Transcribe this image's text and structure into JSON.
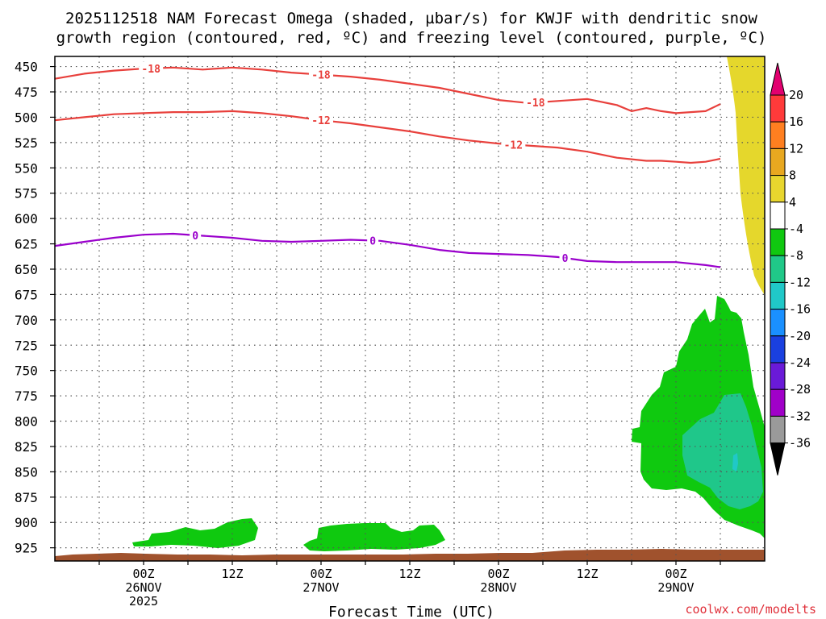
{
  "title_line1": "2025112518 NAM Forecast Omega (shaded, µbar/s) for KWJF with dendritic snow",
  "title_line2": "growth region (contoured, red, ºC) and freezing level (contoured, purple, ºC)",
  "credit": "coolwx.com/modelts",
  "colors": {
    "dgz": "#e8403c",
    "freezing": "#9a00cc",
    "ground": "#a0522d",
    "grid": "#555555"
  },
  "chart_data": {
    "type": "area",
    "xlabel": "Forecast Time (UTC)",
    "xlim": [
      -12,
      84
    ],
    "ylim": [
      440,
      938
    ],
    "y_ticks": [
      450,
      475,
      500,
      525,
      550,
      575,
      600,
      625,
      650,
      675,
      700,
      725,
      750,
      775,
      800,
      825,
      850,
      875,
      900,
      925
    ],
    "x_ticks": [
      {
        "t": 0,
        "lines": [
          "00Z",
          "26NOV",
          "2025"
        ]
      },
      {
        "t": 12,
        "lines": [
          "12Z"
        ]
      },
      {
        "t": 24,
        "lines": [
          "00Z",
          "27NOV"
        ]
      },
      {
        "t": 36,
        "lines": [
          "12Z"
        ]
      },
      {
        "t": 48,
        "lines": [
          "00Z",
          "28NOV"
        ]
      },
      {
        "t": 60,
        "lines": [
          "12Z"
        ]
      },
      {
        "t": 72,
        "lines": [
          "00Z",
          "29NOV"
        ]
      }
    ],
    "contours": [
      {
        "name": "-18",
        "kind": "dgz",
        "labels": [
          {
            "t": 1,
            "text": "-18"
          },
          {
            "t": 24,
            "text": "-18"
          },
          {
            "t": 53,
            "text": "-18"
          }
        ],
        "points": [
          [
            -12,
            462
          ],
          [
            -8,
            457
          ],
          [
            -4,
            454
          ],
          [
            0,
            452
          ],
          [
            4,
            451
          ],
          [
            8,
            453
          ],
          [
            12,
            451
          ],
          [
            16,
            453
          ],
          [
            20,
            456
          ],
          [
            24,
            458
          ],
          [
            28,
            460
          ],
          [
            32,
            463
          ],
          [
            36,
            467
          ],
          [
            40,
            471
          ],
          [
            44,
            477
          ],
          [
            48,
            483
          ],
          [
            52,
            486
          ],
          [
            56,
            484
          ],
          [
            60,
            482
          ],
          [
            64,
            488
          ],
          [
            66,
            494
          ],
          [
            68,
            491
          ],
          [
            70,
            494
          ],
          [
            72,
            496
          ],
          [
            74,
            495
          ],
          [
            76,
            494
          ],
          [
            78,
            487
          ]
        ]
      },
      {
        "name": "-12",
        "kind": "dgz",
        "labels": [
          {
            "t": 24,
            "text": "-12"
          },
          {
            "t": 50,
            "text": "-12"
          }
        ],
        "points": [
          [
            -12,
            503
          ],
          [
            -8,
            500
          ],
          [
            -4,
            497
          ],
          [
            0,
            496
          ],
          [
            4,
            495
          ],
          [
            8,
            495
          ],
          [
            12,
            494
          ],
          [
            16,
            496
          ],
          [
            20,
            499
          ],
          [
            24,
            503
          ],
          [
            28,
            506
          ],
          [
            32,
            510
          ],
          [
            36,
            514
          ],
          [
            40,
            519
          ],
          [
            44,
            523
          ],
          [
            48,
            526
          ],
          [
            52,
            528
          ],
          [
            56,
            530
          ],
          [
            60,
            534
          ],
          [
            64,
            540
          ],
          [
            68,
            543
          ],
          [
            70,
            543
          ],
          [
            72,
            544
          ],
          [
            74,
            545
          ],
          [
            76,
            544
          ],
          [
            78,
            541
          ]
        ]
      },
      {
        "name": "0",
        "kind": "freezing",
        "labels": [
          {
            "t": 7,
            "text": "0"
          },
          {
            "t": 31,
            "text": "0"
          },
          {
            "t": 57,
            "text": "0"
          }
        ],
        "points": [
          [
            -12,
            627
          ],
          [
            -8,
            623
          ],
          [
            -4,
            619
          ],
          [
            0,
            616
          ],
          [
            4,
            615
          ],
          [
            8,
            617
          ],
          [
            12,
            619
          ],
          [
            16,
            622
          ],
          [
            20,
            623
          ],
          [
            24,
            622
          ],
          [
            28,
            621
          ],
          [
            32,
            622
          ],
          [
            36,
            626
          ],
          [
            40,
            631
          ],
          [
            44,
            634
          ],
          [
            48,
            635
          ],
          [
            52,
            636
          ],
          [
            56,
            638
          ],
          [
            60,
            642
          ],
          [
            64,
            643
          ],
          [
            68,
            643
          ],
          [
            72,
            643
          ],
          [
            76,
            646
          ],
          [
            78,
            648
          ]
        ]
      }
    ]
  },
  "colorbar": {
    "labels": [
      "20",
      "16",
      "12",
      "8",
      "4",
      "-4",
      "-8",
      "-12",
      "-16",
      "-20",
      "-24",
      "-28",
      "-32",
      "-36"
    ],
    "colors": [
      "#e2006f",
      "#ff3a3a",
      "#ff7f20",
      "#e8a820",
      "#e8d62e",
      "#ffffff",
      "#10c810",
      "#20c888",
      "#20c8c8",
      "#1a90ff",
      "#1a40e0",
      "#6a1ad8",
      "#a000c8",
      "#9a9a9a",
      "#000000"
    ]
  }
}
